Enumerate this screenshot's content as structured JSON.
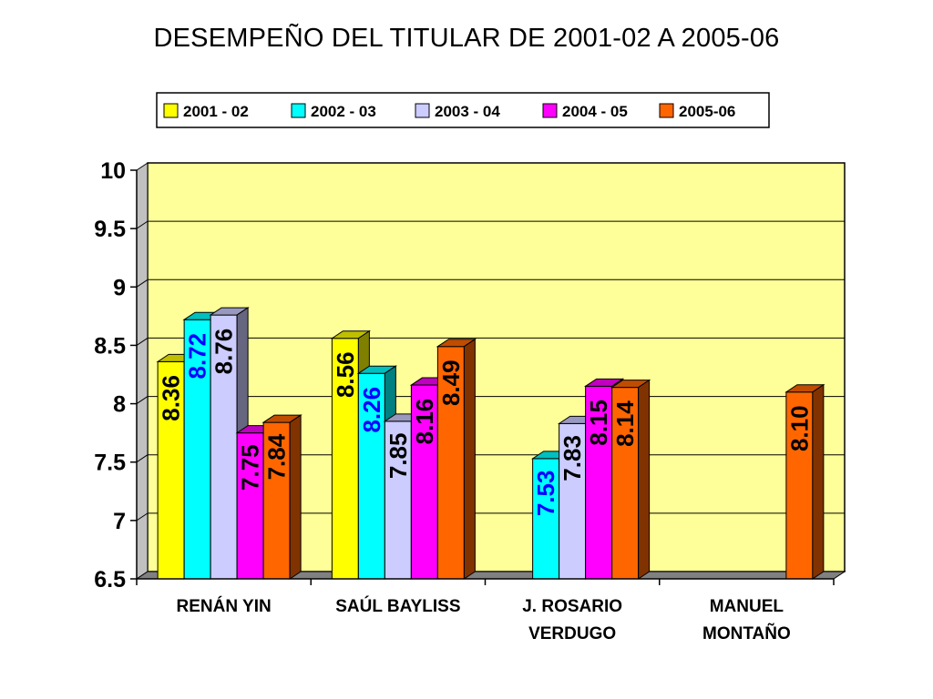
{
  "chart_data": {
    "type": "bar",
    "title": "DESEMPEÑO DEL TITULAR DE 2001-02  A 2005-06",
    "xlabel": "",
    "ylabel": "",
    "ylim": [
      6.5,
      10
    ],
    "yticks": [
      "10",
      "9.5",
      "9",
      "8.5",
      "8",
      "7.5",
      "7",
      "6.5"
    ],
    "grid": true,
    "legend_position": "top",
    "categories": [
      [
        "RENÁN   YIN"
      ],
      [
        "SAÚL  BAYLISS"
      ],
      [
        "J.  ROSARIO",
        "VERDUGO"
      ],
      [
        "MANUEL",
        "MONTAÑO"
      ]
    ],
    "series": [
      {
        "name": "2001 - 02",
        "color": "#ffff00",
        "label_color": "#000000",
        "values": [
          8.36,
          8.56,
          null,
          null
        ],
        "labels": [
          "8.36",
          "8.56",
          null,
          null
        ]
      },
      {
        "name": "2002 - 03",
        "color": "#00ffff",
        "label_color": "#0000ff",
        "values": [
          8.72,
          8.26,
          7.53,
          null
        ],
        "labels": [
          "8.72",
          "8.26",
          "7.53",
          null
        ]
      },
      {
        "name": "2003 - 04",
        "color": "#ccccff",
        "label_color": "#000000",
        "values": [
          8.76,
          7.85,
          7.83,
          null
        ],
        "labels": [
          "8.76",
          "7.85",
          "7.83",
          null
        ]
      },
      {
        "name": "2004 - 05",
        "color": "#ff00ff",
        "label_color": "#000000",
        "values": [
          7.75,
          8.16,
          8.15,
          null
        ],
        "labels": [
          "7.75",
          "8.16",
          "8.15",
          null
        ]
      },
      {
        "name": "2005-06",
        "color": "#ff6600",
        "label_color": "#000000",
        "values": [
          7.84,
          8.49,
          8.14,
          8.1
        ],
        "labels": [
          "7.84",
          "8.49",
          "8.14",
          "8.10"
        ]
      }
    ],
    "colors": {
      "plot_background": "#ffff99",
      "grid": "#000000"
    }
  }
}
